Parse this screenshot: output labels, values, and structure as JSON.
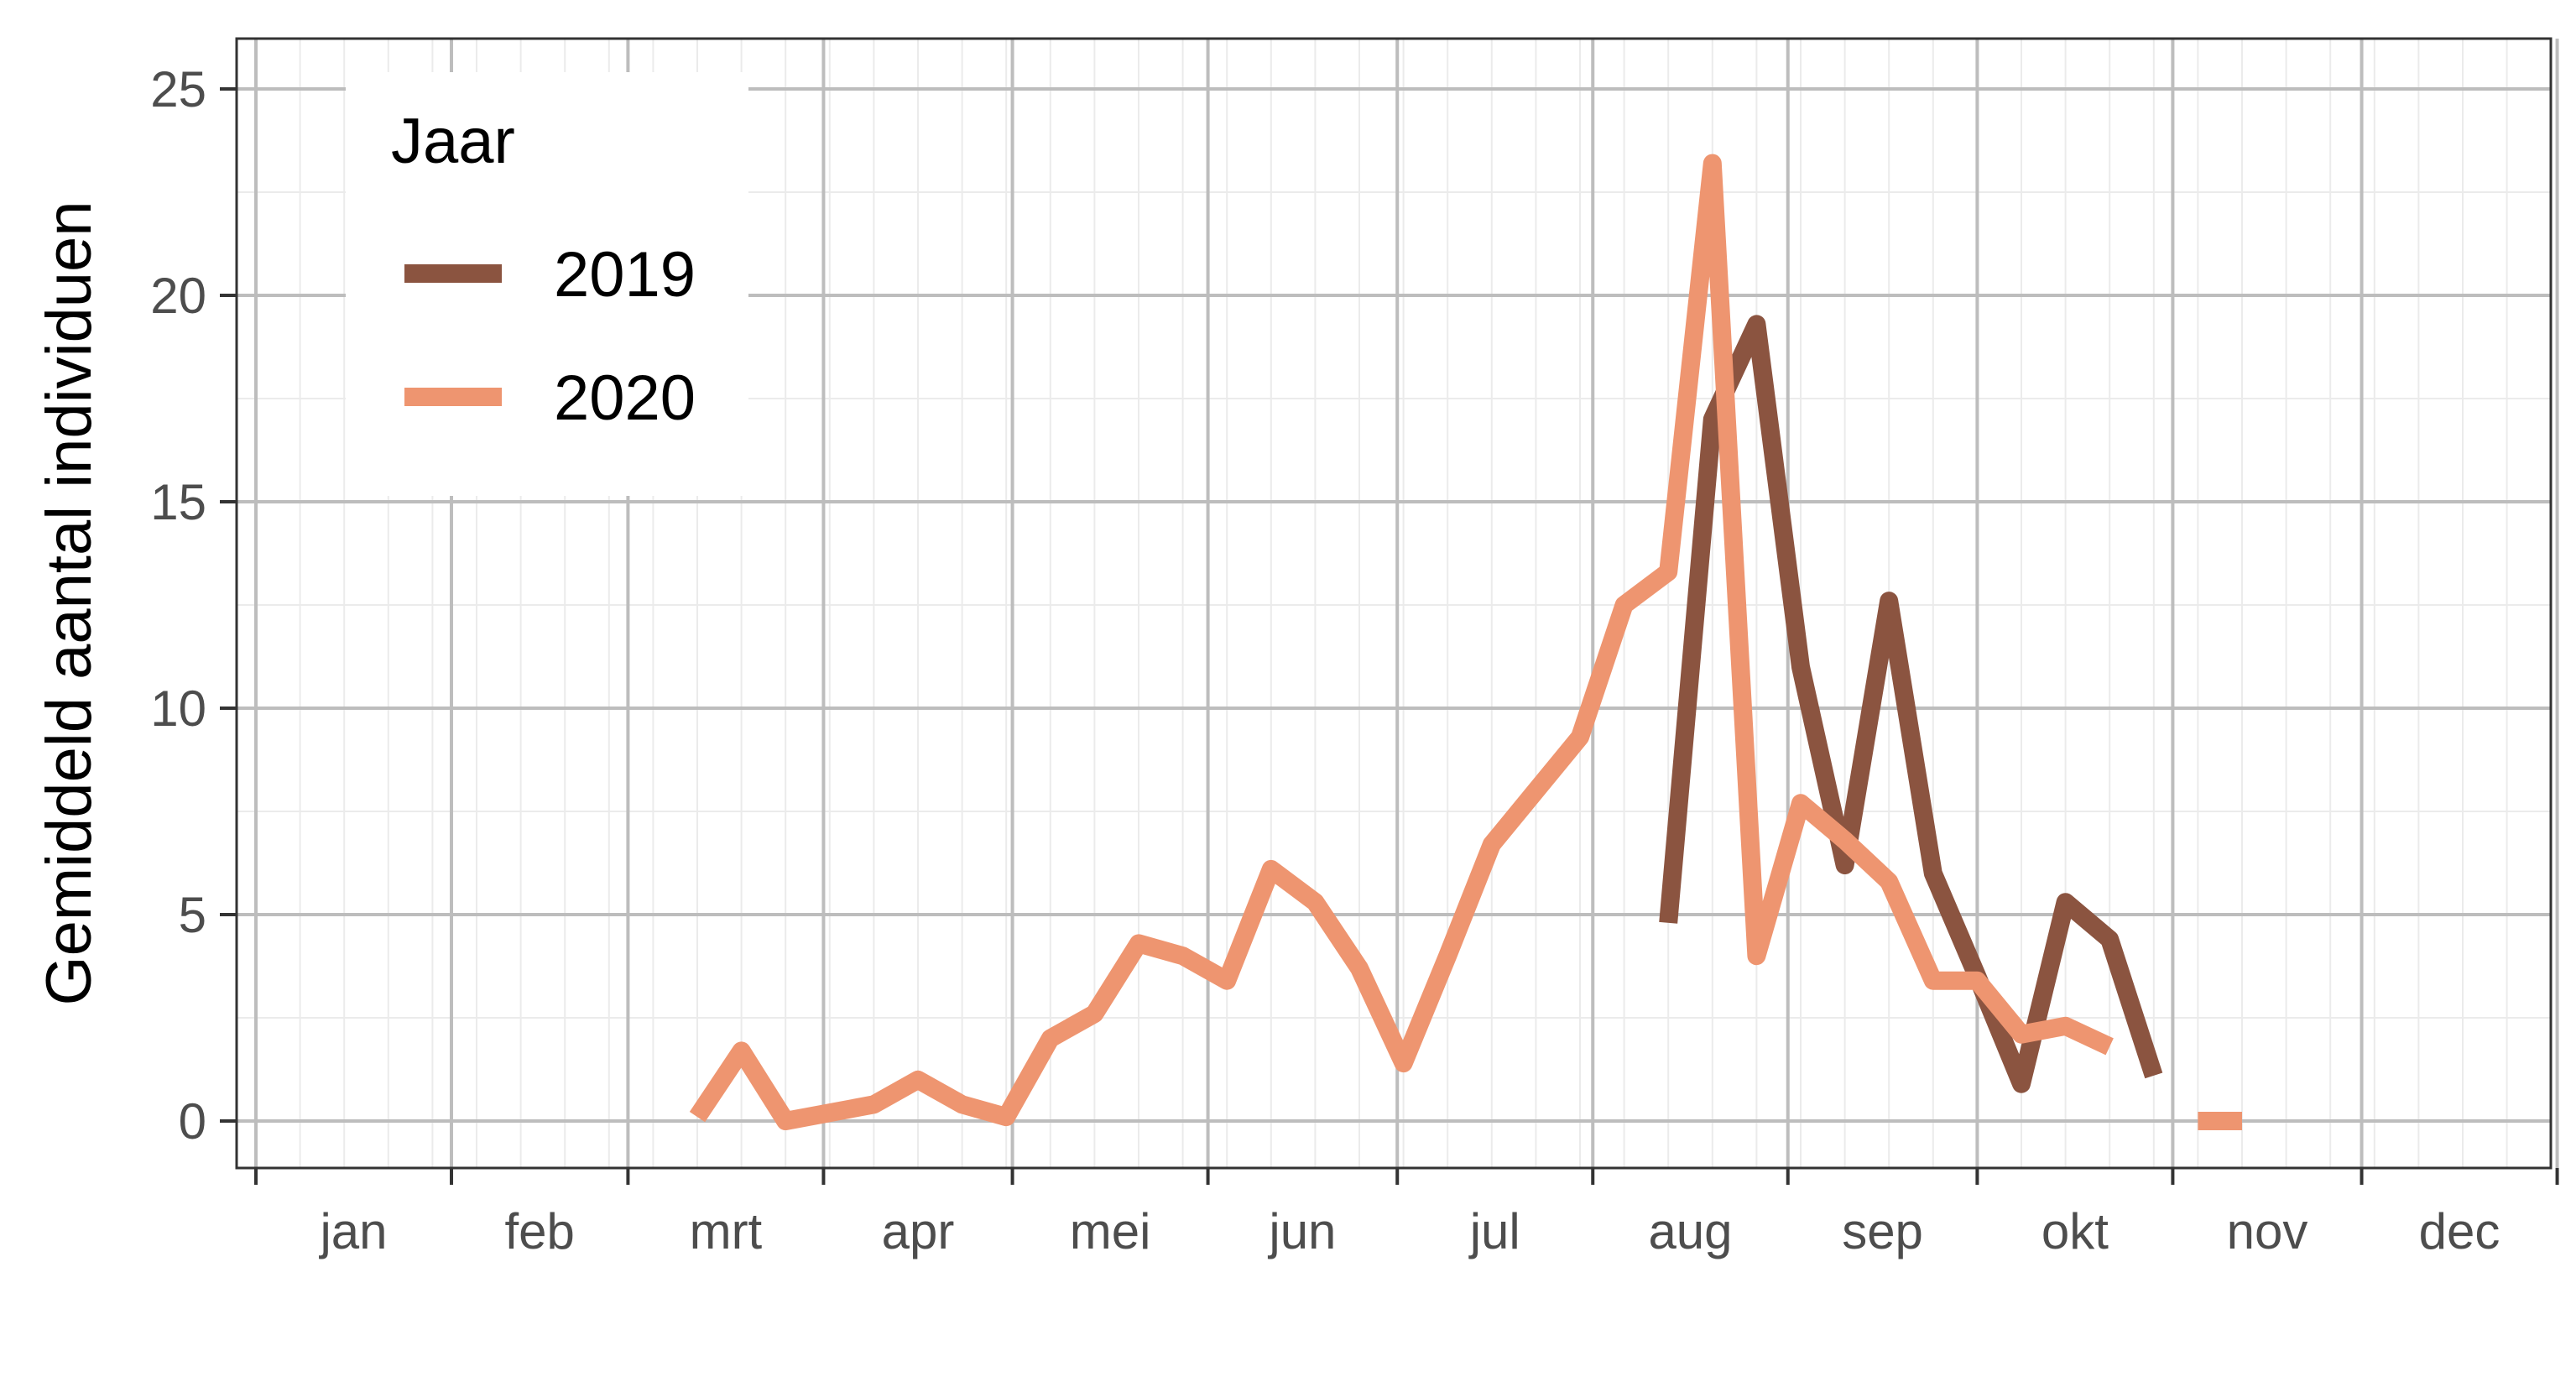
{
  "chart_data": {
    "type": "line",
    "ylabel": "Gemiddeld aantal individuen",
    "xlabel": "",
    "ylim": [
      0,
      25
    ],
    "yticks": [
      "0",
      "5",
      "10",
      "15",
      "20",
      "25"
    ],
    "xticks": [
      "jan",
      "feb",
      "mrt",
      "apr",
      "mei",
      "jun",
      "jul",
      "aug",
      "sep",
      "okt",
      "nov",
      "dec"
    ],
    "x_unit": "week of year",
    "grid": true,
    "legend": {
      "title": "Jaar",
      "placement": "top-left"
    },
    "series": [
      {
        "name": "2019",
        "color": "#8b5440",
        "points": [
          [
            [
              32,
              4.8
            ],
            [
              33,
              17.0
            ],
            [
              34,
              19.3
            ],
            [
              35,
              11.0
            ],
            [
              36,
              6.2
            ],
            [
              37,
              12.6
            ],
            [
              38,
              6.0
            ],
            [
              39,
              3.5
            ],
            [
              40,
              0.9
            ],
            [
              41,
              5.3
            ],
            [
              42,
              4.4
            ],
            [
              43,
              1.1
            ]
          ]
        ]
      },
      {
        "name": "2020",
        "color": "#ee9570",
        "points": [
          [
            [
              10,
              0.1
            ],
            [
              11,
              1.7
            ],
            [
              12,
              0.0
            ],
            [
              13,
              0.2
            ],
            [
              14,
              0.4
            ],
            [
              15,
              1.0
            ],
            [
              16,
              0.4
            ],
            [
              17,
              0.1
            ],
            [
              18,
              2.0
            ],
            [
              19,
              2.6
            ],
            [
              20,
              4.3
            ],
            [
              21,
              4.0
            ],
            [
              22,
              3.4
            ],
            [
              23,
              6.1
            ],
            [
              24,
              5.3
            ],
            [
              25,
              3.7
            ],
            [
              26,
              1.4
            ],
            [
              27,
              4.0
            ],
            [
              28,
              6.7
            ],
            [
              29,
              8.0
            ],
            [
              30,
              9.3
            ],
            [
              31,
              12.5
            ],
            [
              32,
              13.3
            ],
            [
              33,
              23.2
            ],
            [
              34,
              4.0
            ],
            [
              35,
              7.7
            ],
            [
              36,
              6.8
            ],
            [
              37,
              5.8
            ],
            [
              38,
              3.4
            ],
            [
              39,
              3.4
            ],
            [
              40,
              2.1
            ],
            [
              41,
              2.3
            ],
            [
              42,
              1.8
            ]
          ],
          [
            [
              44,
              0.0
            ],
            [
              45,
              0.0
            ]
          ]
        ]
      }
    ]
  }
}
